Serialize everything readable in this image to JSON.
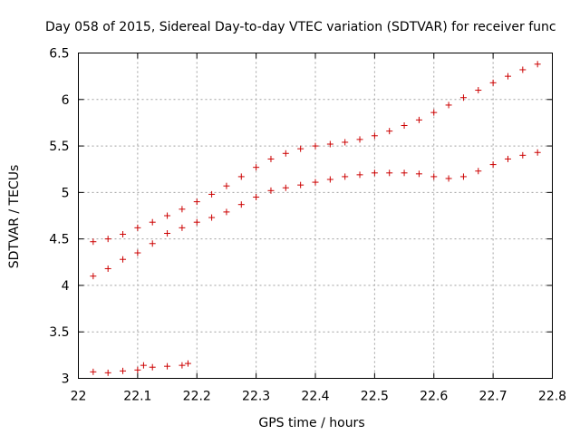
{
  "chart_data": {
    "type": "scatter",
    "title": "Day 058 of 2015, Sidereal Day-to-day VTEC variation (SDTVAR) for receiver func",
    "xlabel": "GPS time / hours",
    "ylabel": "SDTVAR / TECUs",
    "xlim": [
      22.0,
      22.8
    ],
    "ylim": [
      3.0,
      6.5
    ],
    "xticks": [
      22,
      22.1,
      22.2,
      22.3,
      22.4,
      22.5,
      22.6,
      22.7,
      22.8
    ],
    "xtick_labels": [
      "22",
      "22.1",
      "22.2",
      "22.3",
      "22.4",
      "22.5",
      "22.6",
      "22.7",
      "22.8"
    ],
    "yticks": [
      3,
      3.5,
      4,
      4.5,
      5,
      5.5,
      6,
      6.5
    ],
    "ytick_labels": [
      "3",
      "3.5",
      "4",
      "4.5",
      "5",
      "5.5",
      "6",
      "6.5"
    ],
    "grid": true,
    "marker": "+",
    "marker_color": "#cc0000",
    "series": [
      {
        "name": "upper",
        "points": [
          [
            22.025,
            4.47
          ],
          [
            22.05,
            4.5
          ],
          [
            22.075,
            4.55
          ],
          [
            22.1,
            4.62
          ],
          [
            22.125,
            4.68
          ],
          [
            22.15,
            4.75
          ],
          [
            22.175,
            4.82
          ],
          [
            22.2,
            4.9
          ],
          [
            22.225,
            4.98
          ],
          [
            22.25,
            5.07
          ],
          [
            22.275,
            5.17
          ],
          [
            22.3,
            5.27
          ],
          [
            22.325,
            5.36
          ],
          [
            22.35,
            5.42
          ],
          [
            22.375,
            5.47
          ],
          [
            22.4,
            5.5
          ],
          [
            22.425,
            5.52
          ],
          [
            22.45,
            5.54
          ],
          [
            22.475,
            5.57
          ],
          [
            22.5,
            5.61
          ],
          [
            22.525,
            5.66
          ],
          [
            22.55,
            5.72
          ],
          [
            22.575,
            5.78
          ],
          [
            22.6,
            5.86
          ],
          [
            22.625,
            5.94
          ],
          [
            22.65,
            6.02
          ],
          [
            22.675,
            6.1
          ],
          [
            22.7,
            6.18
          ],
          [
            22.725,
            6.25
          ],
          [
            22.75,
            6.32
          ],
          [
            22.775,
            6.38
          ]
        ]
      },
      {
        "name": "middle",
        "points": [
          [
            22.025,
            4.1
          ],
          [
            22.05,
            4.18
          ],
          [
            22.075,
            4.28
          ],
          [
            22.1,
            4.35
          ],
          [
            22.125,
            4.45
          ],
          [
            22.15,
            4.56
          ],
          [
            22.175,
            4.62
          ],
          [
            22.2,
            4.68
          ],
          [
            22.225,
            4.73
          ],
          [
            22.25,
            4.79
          ],
          [
            22.275,
            4.87
          ],
          [
            22.3,
            4.95
          ],
          [
            22.325,
            5.02
          ],
          [
            22.35,
            5.05
          ],
          [
            22.375,
            5.08
          ],
          [
            22.4,
            5.11
          ],
          [
            22.425,
            5.14
          ],
          [
            22.45,
            5.17
          ],
          [
            22.475,
            5.19
          ],
          [
            22.5,
            5.21
          ],
          [
            22.525,
            5.21
          ],
          [
            22.55,
            5.21
          ],
          [
            22.575,
            5.2
          ],
          [
            22.6,
            5.17
          ],
          [
            22.625,
            5.15
          ],
          [
            22.65,
            5.17
          ],
          [
            22.675,
            5.23
          ],
          [
            22.7,
            5.3
          ],
          [
            22.725,
            5.36
          ],
          [
            22.75,
            5.4
          ],
          [
            22.775,
            5.43
          ]
        ]
      },
      {
        "name": "lower",
        "points": [
          [
            22.025,
            3.07
          ],
          [
            22.05,
            3.06
          ],
          [
            22.075,
            3.08
          ],
          [
            22.1,
            3.09
          ],
          [
            22.11,
            3.14
          ],
          [
            22.125,
            3.12
          ],
          [
            22.15,
            3.13
          ],
          [
            22.175,
            3.14
          ],
          [
            22.185,
            3.16
          ]
        ]
      }
    ]
  }
}
